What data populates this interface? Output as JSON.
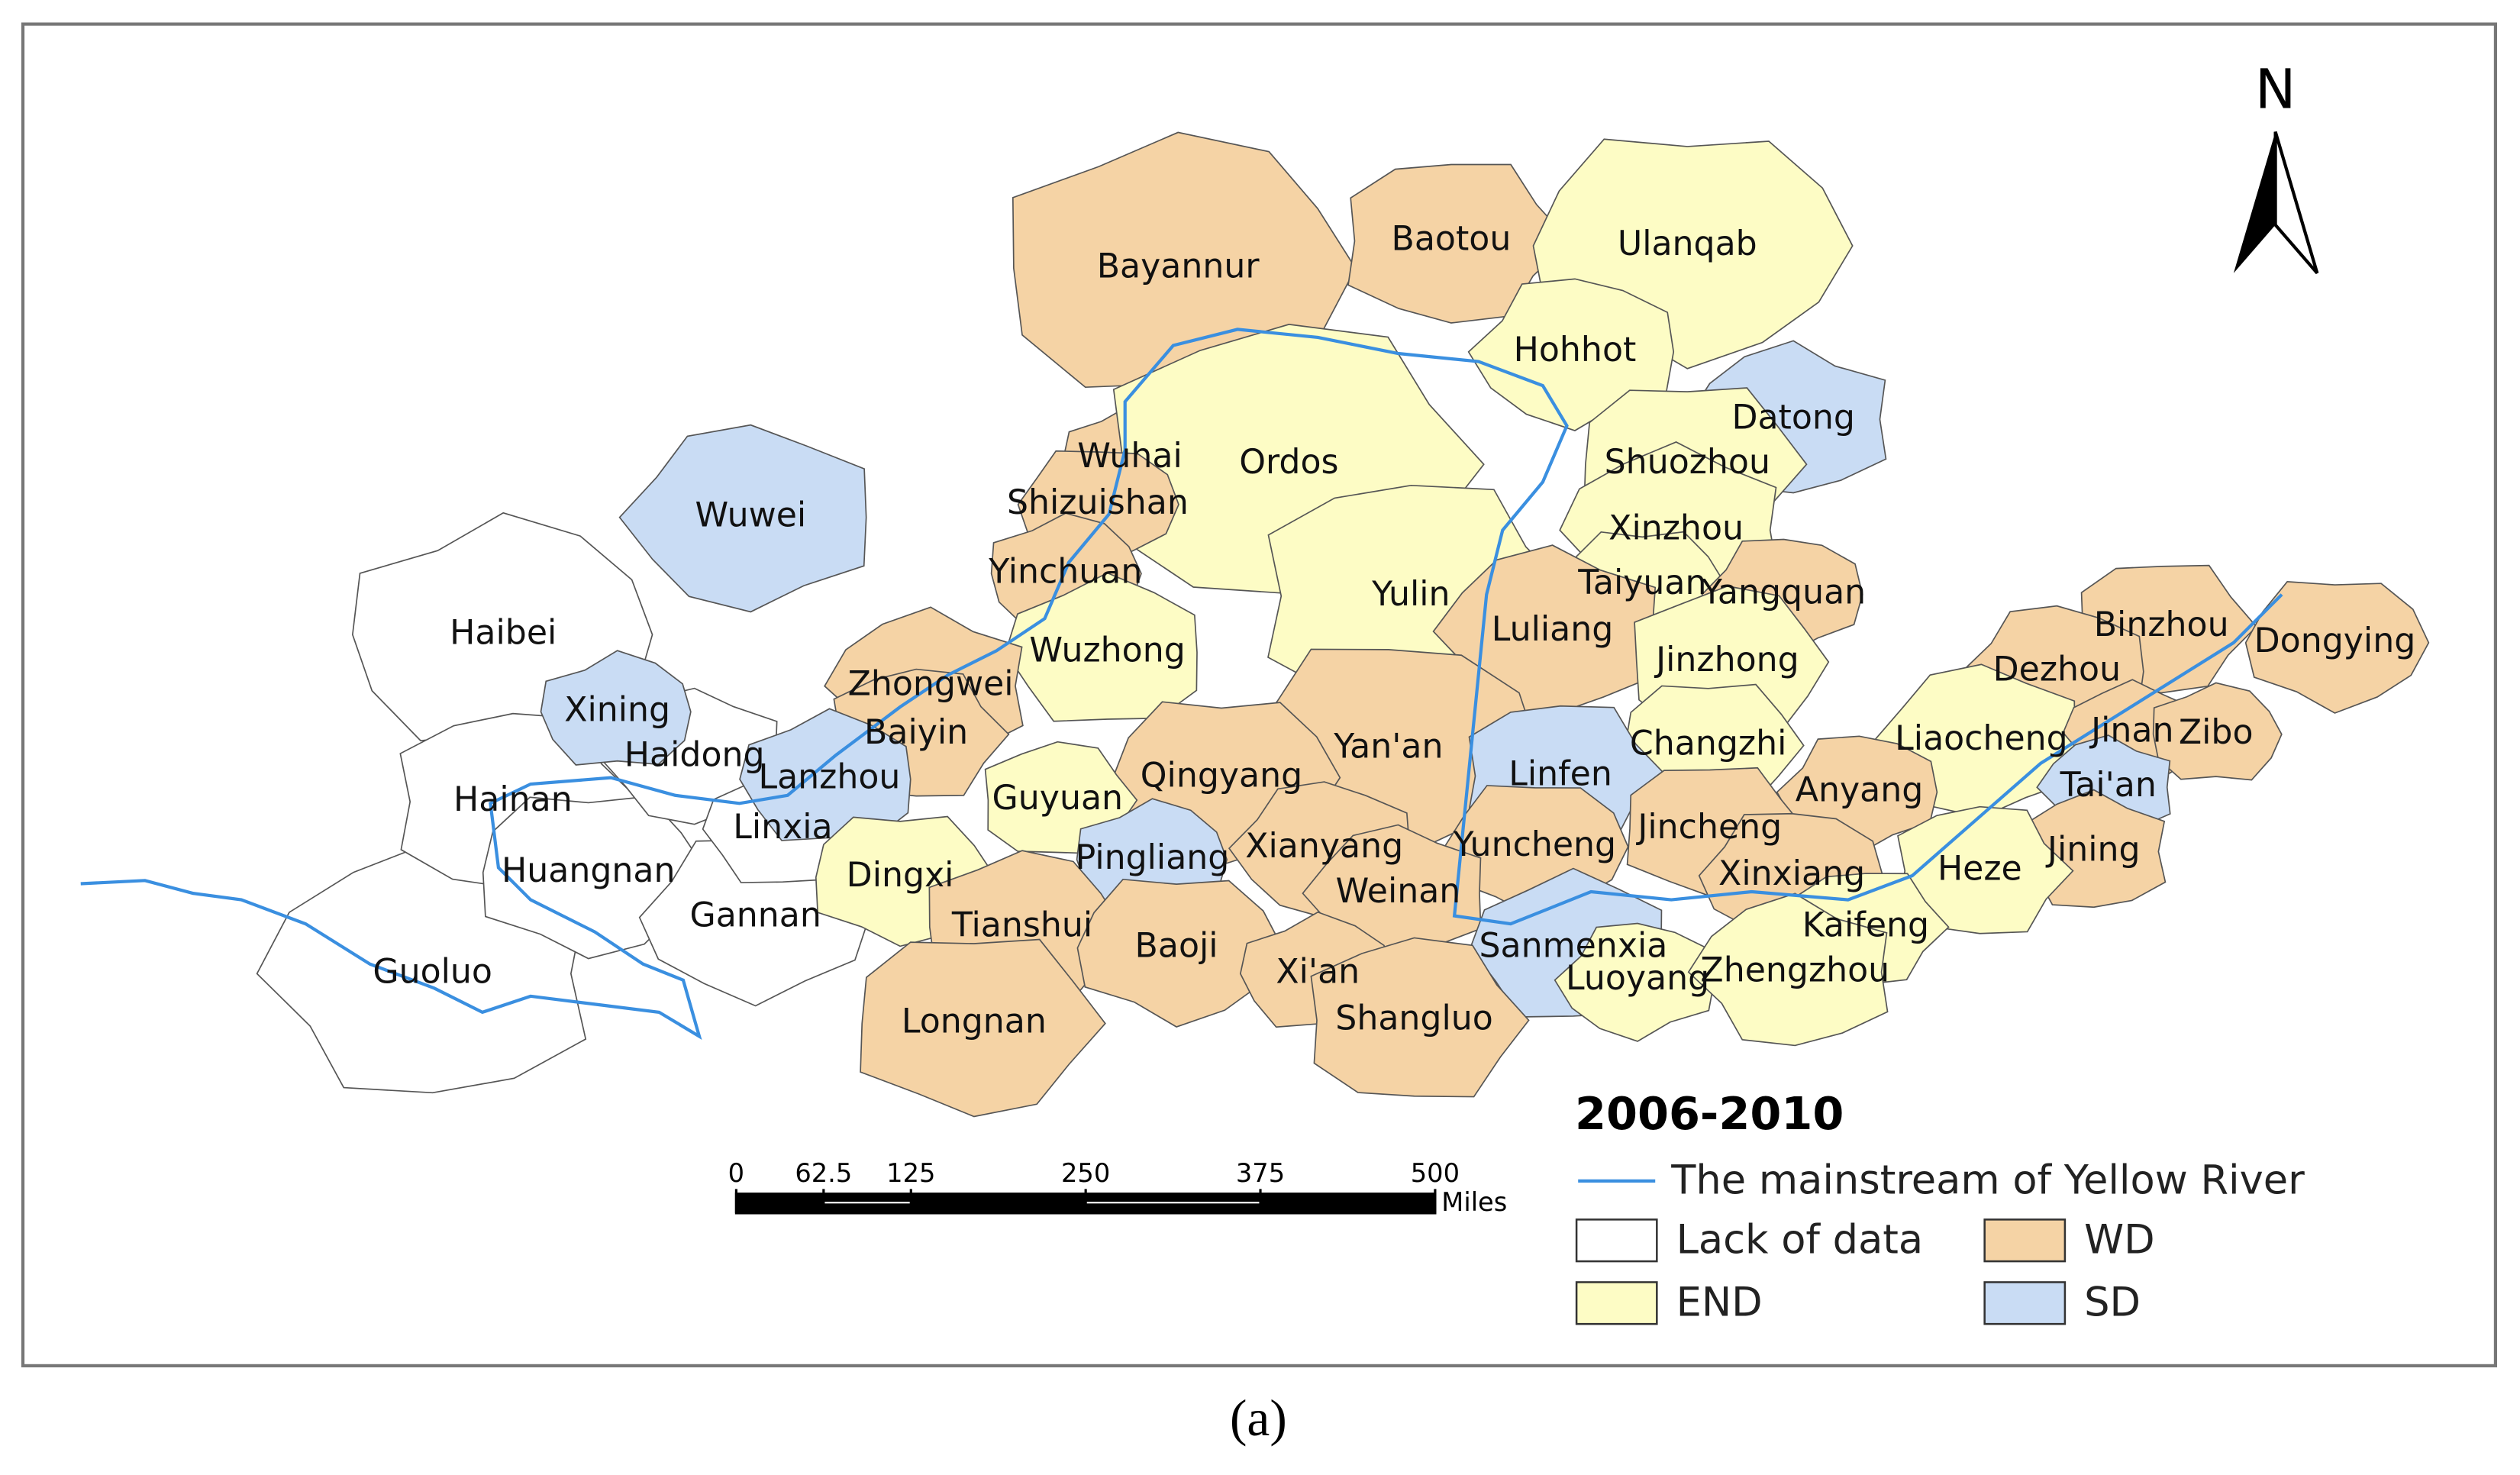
{
  "map": {
    "north": "N",
    "regions": [
      {
        "name": "Guoluo",
        "color": "#ffffff"
      },
      {
        "name": "Haibei",
        "color": "#ffffff"
      },
      {
        "name": "Hainan",
        "color": "#ffffff"
      },
      {
        "name": "Huangnan",
        "color": "#ffffff"
      },
      {
        "name": "Gannan",
        "color": "#ffffff"
      },
      {
        "name": "Haidong",
        "color": "#ffffff"
      },
      {
        "name": "Linxia",
        "color": "#ffffff"
      },
      {
        "name": "Bayannur",
        "color": "#f5d3a5"
      },
      {
        "name": "Baotou",
        "color": "#f5d3a5"
      },
      {
        "name": "Ulanqab",
        "color": "#fdfcc5"
      },
      {
        "name": "Hohhot",
        "color": "#fdfcc5"
      },
      {
        "name": "Datong",
        "color": "#c9dcf4"
      },
      {
        "name": "Wuhai",
        "color": "#f5d3a5"
      },
      {
        "name": "Ordos",
        "color": "#fdfcc5"
      },
      {
        "name": "Shuozhou",
        "color": "#fdfcc5"
      },
      {
        "name": "Shizuishan",
        "color": "#f5d3a5"
      },
      {
        "name": "Wuwei",
        "color": "#c9dcf4"
      },
      {
        "name": "Xinzhou",
        "color": "#fdfcc5"
      },
      {
        "name": "Yinchuan",
        "color": "#f5d3a5"
      },
      {
        "name": "Yulin",
        "color": "#fdfcc5"
      },
      {
        "name": "Taiyuan",
        "color": "#fdfcc5"
      },
      {
        "name": "Yangquan",
        "color": "#f5d3a5"
      },
      {
        "name": "Luliang",
        "color": "#f5d3a5"
      },
      {
        "name": "Wuzhong",
        "color": "#fdfcc5"
      },
      {
        "name": "Jinzhong",
        "color": "#fdfcc5"
      },
      {
        "name": "Binzhou",
        "color": "#f5d3a5"
      },
      {
        "name": "Dongying",
        "color": "#f5d3a5"
      },
      {
        "name": "Dezhou",
        "color": "#f5d3a5"
      },
      {
        "name": "Zhongwei",
        "color": "#f5d3a5"
      },
      {
        "name": "Xining",
        "color": "#c9dcf4"
      },
      {
        "name": "Baiyin",
        "color": "#f5d3a5"
      },
      {
        "name": "Changzhi",
        "color": "#fdfcc5"
      },
      {
        "name": "Yan'an",
        "color": "#f5d3a5"
      },
      {
        "name": "Liaocheng",
        "color": "#fdfcc5"
      },
      {
        "name": "Jinan",
        "color": "#f5d3a5"
      },
      {
        "name": "Zibo",
        "color": "#f5d3a5"
      },
      {
        "name": "Linfen",
        "color": "#c9dcf4"
      },
      {
        "name": "Qingyang",
        "color": "#f5d3a5"
      },
      {
        "name": "Anyang",
        "color": "#f5d3a5"
      },
      {
        "name": "Tai'an",
        "color": "#c9dcf4"
      },
      {
        "name": "Lanzhou",
        "color": "#c9dcf4"
      },
      {
        "name": "Guyuan",
        "color": "#fdfcc5"
      },
      {
        "name": "Jincheng",
        "color": "#f5d3a5"
      },
      {
        "name": "Yuncheng",
        "color": "#f5d3a5"
      },
      {
        "name": "Xianyang",
        "color": "#f5d3a5"
      },
      {
        "name": "Jining",
        "color": "#f5d3a5"
      },
      {
        "name": "Pingliang",
        "color": "#c9dcf4"
      },
      {
        "name": "Heze",
        "color": "#fdfcc5"
      },
      {
        "name": "Dingxi",
        "color": "#fdfcc5"
      },
      {
        "name": "Xinxiang",
        "color": "#f5d3a5"
      },
      {
        "name": "Weinan",
        "color": "#f5d3a5"
      },
      {
        "name": "Sanmenxia",
        "color": "#c9dcf4"
      },
      {
        "name": "Tianshui",
        "color": "#f5d3a5"
      },
      {
        "name": "Kaifeng",
        "color": "#fdfcc5"
      },
      {
        "name": "Baoji",
        "color": "#f5d3a5"
      },
      {
        "name": "Luoyang",
        "color": "#fdfcc5"
      },
      {
        "name": "Zhengzhou",
        "color": "#fdfcc5"
      },
      {
        "name": "Xi'an",
        "color": "#f5d3a5"
      },
      {
        "name": "Shangluo",
        "color": "#f5d3a5"
      },
      {
        "name": "Longnan",
        "color": "#f5d3a5"
      }
    ],
    "scale_bar": {
      "ticks": [
        0,
        62.5,
        125,
        250,
        375,
        500
      ],
      "unit": "Miles"
    },
    "legend": {
      "title": "2006-2010",
      "river": "The mainstream of Yellow River",
      "river_color": "#3a8fe0",
      "items": [
        {
          "label": "Lack of data",
          "color": "#ffffff"
        },
        {
          "label": "WD",
          "color": "#f5d3a5"
        },
        {
          "label": "END",
          "color": "#fdfcc5"
        },
        {
          "label": "SD",
          "color": "#c9dcf4"
        }
      ]
    }
  },
  "caption": "(a)"
}
